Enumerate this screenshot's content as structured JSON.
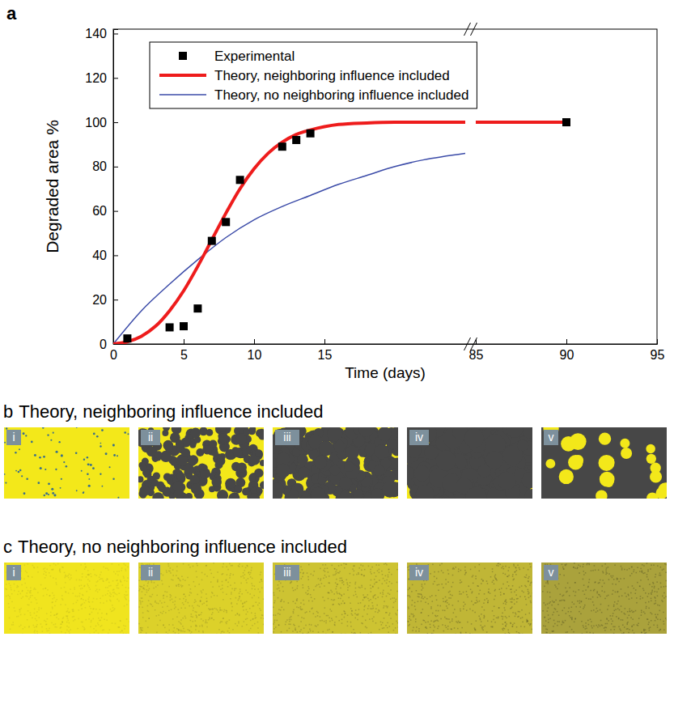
{
  "chart_data": {
    "type": "line",
    "panel_label": "a",
    "xlabel": "Time (days)",
    "ylabel": "Degraded area %",
    "xlim": [
      0,
      95
    ],
    "xbreak": [
      25,
      85
    ],
    "xticks": [
      0,
      5,
      10,
      15,
      85,
      90,
      95
    ],
    "ylim": [
      0,
      142
    ],
    "yticks": [
      0,
      20,
      40,
      60,
      80,
      100,
      120,
      140
    ],
    "grid": false,
    "legend": "top",
    "series": [
      {
        "name": "Experimental",
        "type": "scatter",
        "marker": "square",
        "color": "#000000",
        "x": [
          1,
          4,
          5,
          6,
          7,
          8,
          9,
          12,
          13,
          14,
          90
        ],
        "values": [
          2.5,
          7.5,
          8,
          16,
          46.5,
          55,
          74,
          89,
          92,
          95,
          100
        ]
      },
      {
        "name": "Theory, neighboring influence included",
        "type": "line",
        "color": "#ee1c1c",
        "x": [
          0,
          1,
          2,
          3,
          4,
          5,
          6,
          7,
          8,
          9,
          10,
          11,
          12,
          13,
          14,
          15,
          16,
          18,
          20,
          25,
          null,
          85,
          90
        ],
        "values": [
          0,
          1,
          3.5,
          8,
          15,
          24,
          35,
          47,
          59,
          70,
          79,
          86,
          91,
          94.5,
          96.5,
          98,
          99,
          99.7,
          100,
          100,
          null,
          100,
          100
        ]
      },
      {
        "name": "Theory, no neighboring influence included",
        "type": "line",
        "color": "#3b4ba8",
        "x": [
          0,
          2,
          4,
          6,
          8,
          10,
          12,
          14,
          16,
          18,
          20,
          22,
          25,
          null,
          85,
          90
        ],
        "values": [
          0,
          15,
          27,
          38,
          48,
          56,
          62,
          67,
          72,
          76,
          80,
          83,
          86,
          null,
          100,
          100
        ]
      }
    ]
  },
  "panels": [
    {
      "letter": "b",
      "title": "Theory, neighboring influence included",
      "images": [
        "i",
        "ii",
        "iii",
        "iv",
        "v"
      ]
    },
    {
      "letter": "c",
      "title": "Theory, no neighboring influence included",
      "images": [
        "i",
        "ii",
        "iii",
        "iv",
        "v"
      ]
    }
  ]
}
